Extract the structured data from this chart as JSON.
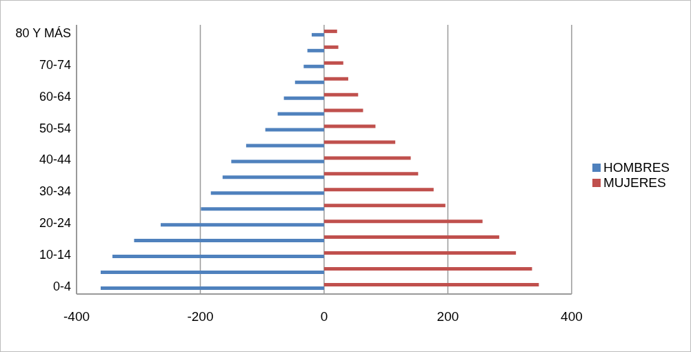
{
  "chart_data": {
    "type": "bar",
    "orientation": "horizontal",
    "categories": [
      "80 Y MÁS",
      null,
      "70-74",
      null,
      "60-64",
      null,
      "50-54",
      null,
      "40-44",
      null,
      "30-34",
      null,
      "20-24",
      null,
      "10-14",
      null,
      "0-4"
    ],
    "series": [
      {
        "name": "MUJERES",
        "color": "#c0504d",
        "values": [
          21,
          23,
          31,
          39,
          55,
          63,
          83,
          115,
          140,
          152,
          177,
          196,
          256,
          283,
          310,
          336,
          347
        ]
      },
      {
        "name": "HOMBRES",
        "color": "#4f81bd",
        "values": [
          -20,
          -27,
          -33,
          -47,
          -65,
          -75,
          -95,
          -126,
          -150,
          -164,
          -183,
          -199,
          -264,
          -307,
          -342,
          -361,
          -361
        ]
      }
    ],
    "xlim": [
      -400,
      400
    ],
    "xticks": [
      -400,
      -200,
      0,
      200,
      400
    ],
    "grid": "x",
    "legend": "right"
  }
}
